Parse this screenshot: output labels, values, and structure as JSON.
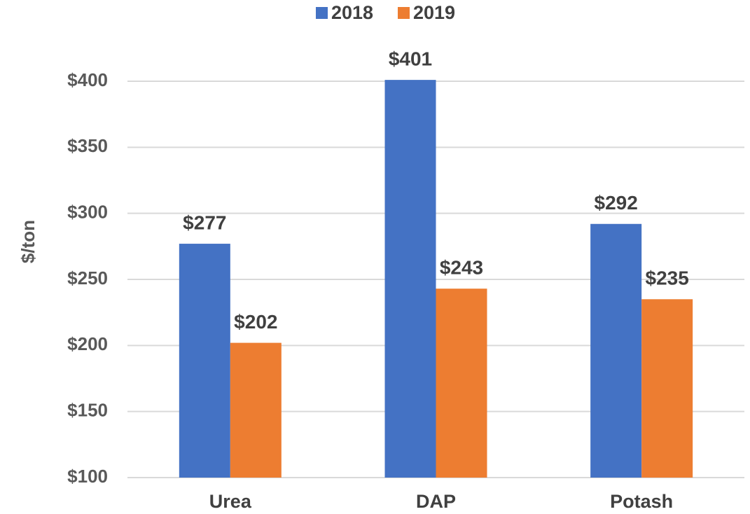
{
  "chart_data": {
    "type": "bar",
    "y_label": "$/ton",
    "categories": [
      "Urea",
      "DAP",
      "Potash"
    ],
    "series": [
      {
        "name": "2018",
        "color": "#4472c4",
        "values": [
          277,
          401,
          292
        ],
        "value_labels": [
          "$277",
          "$401",
          "$292"
        ]
      },
      {
        "name": "2019",
        "color": "#ed7d31",
        "values": [
          202,
          243,
          235
        ],
        "value_labels": [
          "$202",
          "$243",
          "$235"
        ]
      }
    ],
    "ylim": [
      100,
      400
    ],
    "yticks": [
      {
        "value": 100,
        "label": "$100"
      },
      {
        "value": 150,
        "label": "$150"
      },
      {
        "value": 200,
        "label": "$200"
      },
      {
        "value": 250,
        "label": "$250"
      },
      {
        "value": 300,
        "label": "$300"
      },
      {
        "value": 350,
        "label": "$350"
      },
      {
        "value": 400,
        "label": "$400"
      }
    ],
    "grid": true,
    "legend": "top"
  }
}
